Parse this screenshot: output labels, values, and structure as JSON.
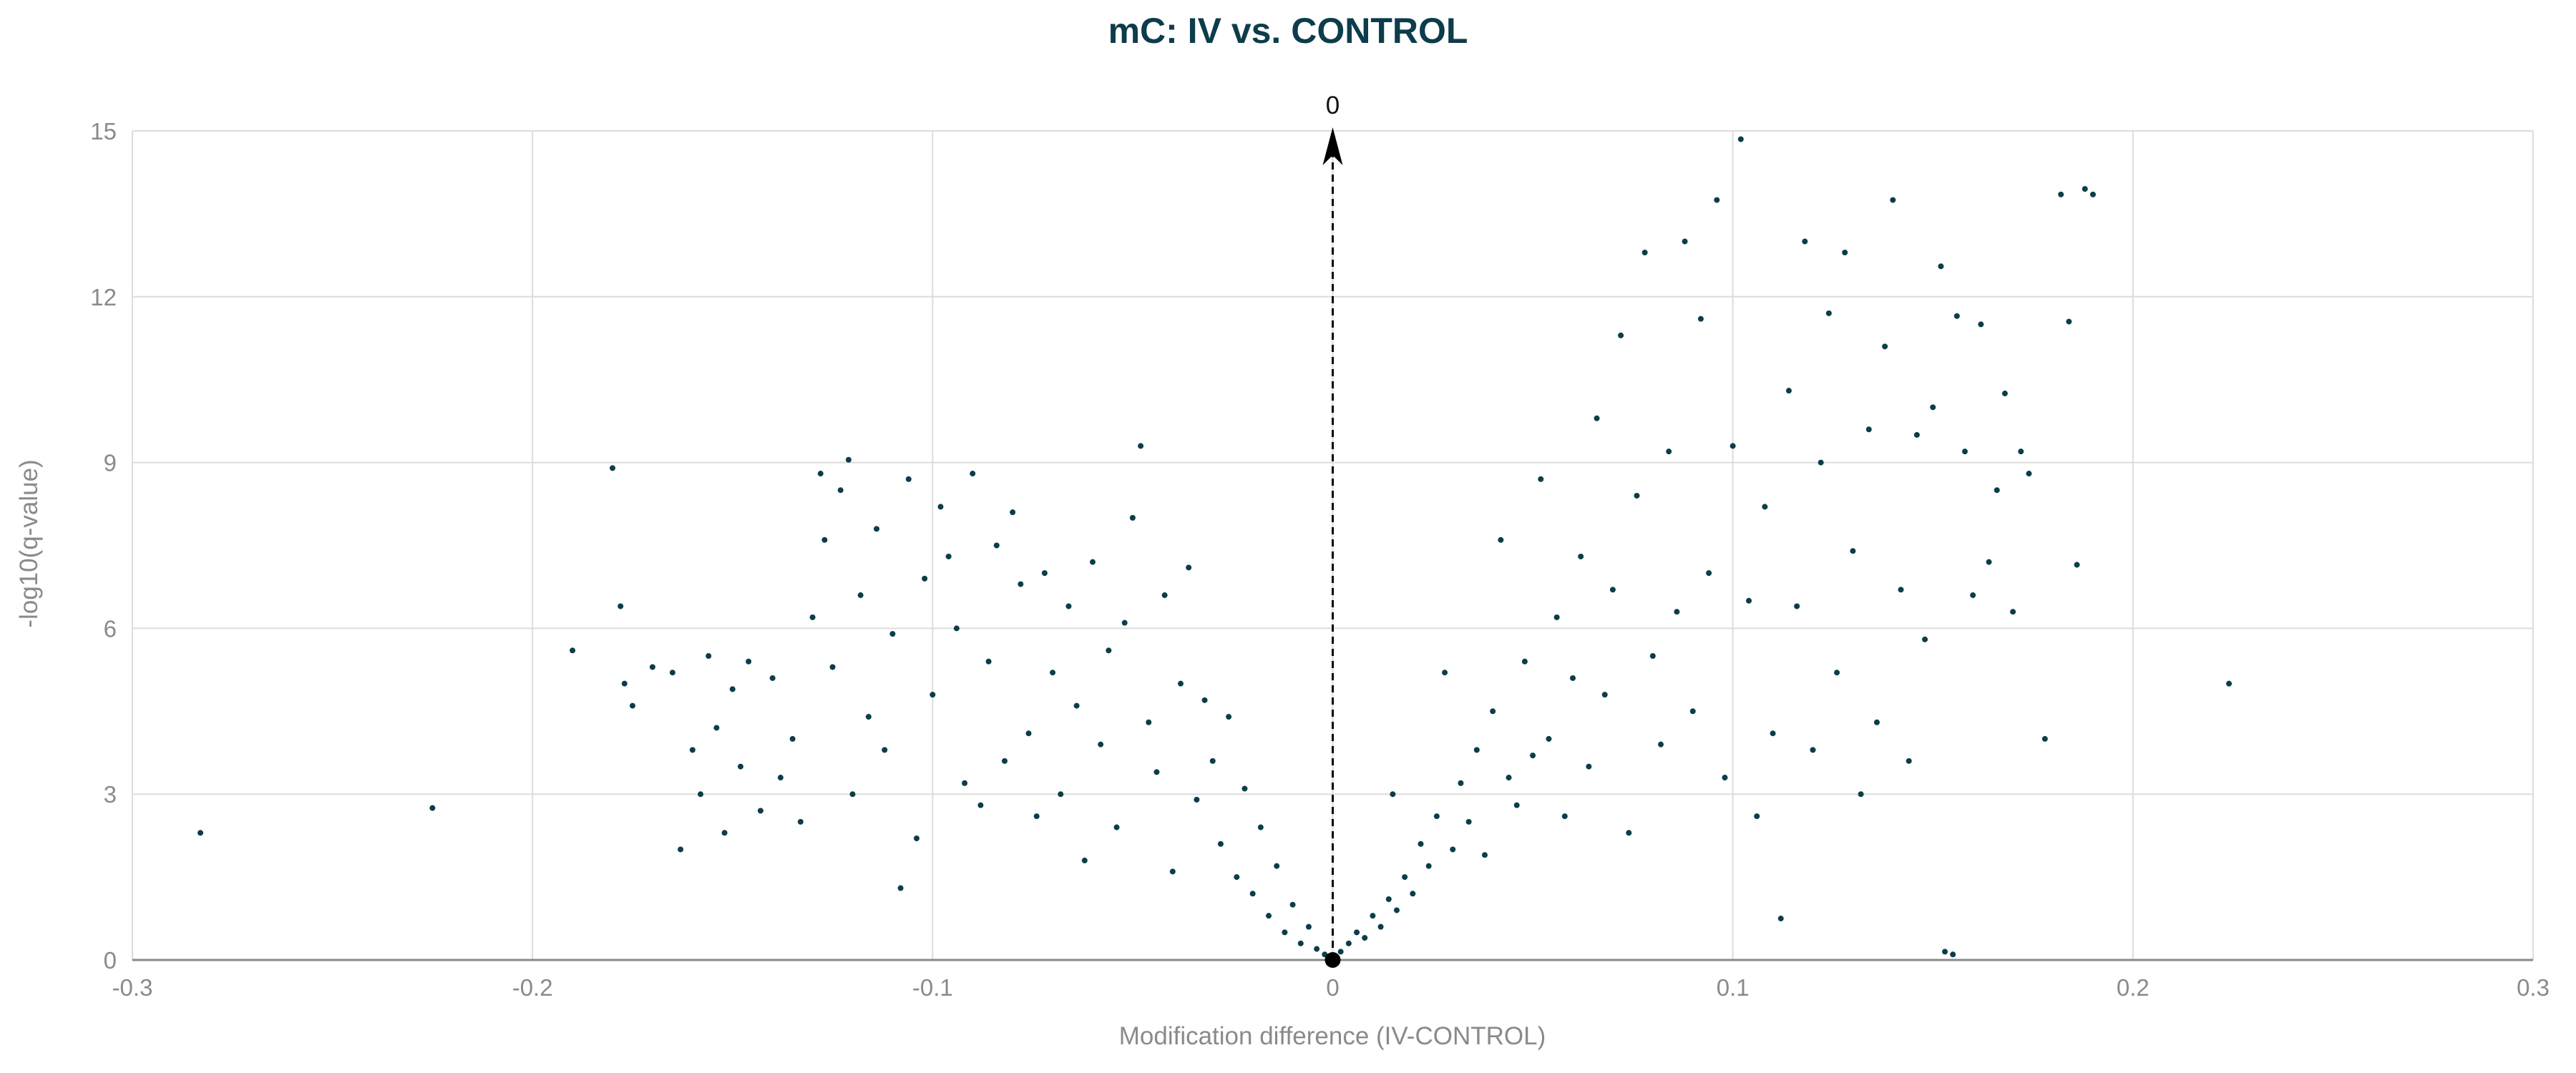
{
  "chart_data": {
    "type": "scatter",
    "title": "mC: IV vs. CONTROL",
    "xlabel": "Modification difference (IV-CONTROL)",
    "ylabel": "-log10(q-value)",
    "xlim": [
      -0.3,
      0.3
    ],
    "ylim": [
      0,
      15
    ],
    "xticks": [
      -0.3,
      -0.2,
      -0.1,
      0,
      0.1,
      0.2,
      0.3
    ],
    "xtick_labels": [
      "-0.3",
      "-0.2",
      "-0.1",
      "0",
      "0.1",
      "0.2",
      "0.3"
    ],
    "yticks": [
      0,
      3,
      6,
      9,
      12,
      15
    ],
    "ytick_labels": [
      "0",
      "3",
      "6",
      "9",
      "12",
      "15"
    ],
    "grid": true,
    "point_color": "#0d3c4a",
    "reference_line": {
      "x": 0,
      "label": "0"
    },
    "series": [
      {
        "points": [
          [
            -0.283,
            2.3
          ],
          [
            -0.225,
            2.75
          ],
          [
            -0.19,
            5.6
          ],
          [
            -0.18,
            8.9
          ],
          [
            -0.178,
            6.4
          ],
          [
            -0.177,
            5.0
          ],
          [
            -0.175,
            4.6
          ],
          [
            -0.17,
            5.3
          ],
          [
            -0.165,
            5.2
          ],
          [
            -0.163,
            2.0
          ],
          [
            -0.16,
            3.8
          ],
          [
            -0.158,
            3.0
          ],
          [
            -0.156,
            5.5
          ],
          [
            -0.154,
            4.2
          ],
          [
            -0.152,
            2.3
          ],
          [
            -0.15,
            4.9
          ],
          [
            -0.148,
            3.5
          ],
          [
            -0.146,
            5.4
          ],
          [
            -0.143,
            2.7
          ],
          [
            -0.14,
            5.1
          ],
          [
            -0.138,
            3.3
          ],
          [
            -0.135,
            4.0
          ],
          [
            -0.133,
            2.5
          ],
          [
            -0.13,
            6.2
          ],
          [
            -0.128,
            8.8
          ],
          [
            -0.127,
            7.6
          ],
          [
            -0.125,
            5.3
          ],
          [
            -0.123,
            8.5
          ],
          [
            -0.121,
            9.05
          ],
          [
            -0.12,
            3.0
          ],
          [
            -0.118,
            6.6
          ],
          [
            -0.116,
            4.4
          ],
          [
            -0.114,
            7.8
          ],
          [
            -0.112,
            3.8
          ],
          [
            -0.11,
            5.9
          ],
          [
            -0.108,
            1.3
          ],
          [
            -0.106,
            8.7
          ],
          [
            -0.104,
            2.2
          ],
          [
            -0.102,
            6.9
          ],
          [
            -0.1,
            4.8
          ],
          [
            -0.098,
            8.2
          ],
          [
            -0.096,
            7.3
          ],
          [
            -0.094,
            6.0
          ],
          [
            -0.092,
            3.2
          ],
          [
            -0.09,
            8.8
          ],
          [
            -0.088,
            2.8
          ],
          [
            -0.086,
            5.4
          ],
          [
            -0.084,
            7.5
          ],
          [
            -0.082,
            3.6
          ],
          [
            -0.08,
            8.1
          ],
          [
            -0.078,
            6.8
          ],
          [
            -0.076,
            4.1
          ],
          [
            -0.074,
            2.6
          ],
          [
            -0.072,
            7.0
          ],
          [
            -0.07,
            5.2
          ],
          [
            -0.068,
            3.0
          ],
          [
            -0.066,
            6.4
          ],
          [
            -0.064,
            4.6
          ],
          [
            -0.062,
            1.8
          ],
          [
            -0.06,
            7.2
          ],
          [
            -0.058,
            3.9
          ],
          [
            -0.056,
            5.6
          ],
          [
            -0.054,
            2.4
          ],
          [
            -0.052,
            6.1
          ],
          [
            -0.05,
            8.0
          ],
          [
            -0.048,
            9.3
          ],
          [
            -0.046,
            4.3
          ],
          [
            -0.044,
            3.4
          ],
          [
            -0.042,
            6.6
          ],
          [
            -0.04,
            1.6
          ],
          [
            -0.038,
            5.0
          ],
          [
            -0.036,
            7.1
          ],
          [
            -0.034,
            2.9
          ],
          [
            -0.032,
            4.7
          ],
          [
            -0.03,
            3.6
          ],
          [
            -0.028,
            2.1
          ],
          [
            -0.026,
            4.4
          ],
          [
            -0.024,
            1.5
          ],
          [
            -0.022,
            3.1
          ],
          [
            -0.02,
            1.2
          ],
          [
            -0.018,
            2.4
          ],
          [
            -0.016,
            0.8
          ],
          [
            -0.014,
            1.7
          ],
          [
            -0.012,
            0.5
          ],
          [
            -0.01,
            1.0
          ],
          [
            -0.008,
            0.3
          ],
          [
            -0.006,
            0.6
          ],
          [
            -0.004,
            0.2
          ],
          [
            -0.002,
            0.1
          ],
          [
            0,
            0.0
          ],
          [
            0.002,
            0.15
          ],
          [
            0.004,
            0.3
          ],
          [
            0.006,
            0.5
          ],
          [
            0.008,
            0.4
          ],
          [
            0.01,
            0.8
          ],
          [
            0.012,
            0.6
          ],
          [
            0.014,
            1.1
          ],
          [
            0.015,
            3.0
          ],
          [
            0.016,
            0.9
          ],
          [
            0.018,
            1.5
          ],
          [
            0.02,
            1.2
          ],
          [
            0.022,
            2.1
          ],
          [
            0.024,
            1.7
          ],
          [
            0.026,
            2.6
          ],
          [
            0.028,
            5.2
          ],
          [
            0.03,
            2.0
          ],
          [
            0.032,
            3.2
          ],
          [
            0.034,
            2.5
          ],
          [
            0.036,
            3.8
          ],
          [
            0.038,
            1.9
          ],
          [
            0.04,
            4.5
          ],
          [
            0.042,
            7.6
          ],
          [
            0.044,
            3.3
          ],
          [
            0.046,
            2.8
          ],
          [
            0.048,
            5.4
          ],
          [
            0.05,
            3.7
          ],
          [
            0.052,
            8.7
          ],
          [
            0.054,
            4.0
          ],
          [
            0.056,
            6.2
          ],
          [
            0.058,
            2.6
          ],
          [
            0.06,
            5.1
          ],
          [
            0.062,
            7.3
          ],
          [
            0.064,
            3.5
          ],
          [
            0.066,
            9.8
          ],
          [
            0.068,
            4.8
          ],
          [
            0.07,
            6.7
          ],
          [
            0.072,
            11.3
          ],
          [
            0.074,
            2.3
          ],
          [
            0.076,
            8.4
          ],
          [
            0.078,
            12.8
          ],
          [
            0.08,
            5.5
          ],
          [
            0.082,
            3.9
          ],
          [
            0.084,
            9.2
          ],
          [
            0.086,
            6.3
          ],
          [
            0.088,
            13.0
          ],
          [
            0.09,
            4.5
          ],
          [
            0.092,
            11.6
          ],
          [
            0.094,
            7.0
          ],
          [
            0.096,
            13.75
          ],
          [
            0.098,
            3.3
          ],
          [
            0.1,
            9.3
          ],
          [
            0.102,
            14.85
          ],
          [
            0.104,
            6.5
          ],
          [
            0.106,
            2.6
          ],
          [
            0.108,
            8.2
          ],
          [
            0.11,
            4.1
          ],
          [
            0.112,
            0.75
          ],
          [
            0.114,
            10.3
          ],
          [
            0.116,
            6.4
          ],
          [
            0.118,
            13.0
          ],
          [
            0.12,
            3.8
          ],
          [
            0.122,
            9.0
          ],
          [
            0.124,
            11.7
          ],
          [
            0.126,
            5.2
          ],
          [
            0.128,
            12.8
          ],
          [
            0.13,
            7.4
          ],
          [
            0.132,
            3.0
          ],
          [
            0.134,
            9.6
          ],
          [
            0.136,
            4.3
          ],
          [
            0.138,
            11.1
          ],
          [
            0.14,
            13.75
          ],
          [
            0.142,
            6.7
          ],
          [
            0.144,
            3.6
          ],
          [
            0.146,
            9.5
          ],
          [
            0.148,
            5.8
          ],
          [
            0.15,
            10.0
          ],
          [
            0.152,
            12.55
          ],
          [
            0.153,
            0.15
          ],
          [
            0.155,
            0.1
          ],
          [
            0.156,
            11.65
          ],
          [
            0.158,
            9.2
          ],
          [
            0.16,
            6.6
          ],
          [
            0.162,
            11.5
          ],
          [
            0.164,
            7.2
          ],
          [
            0.166,
            8.5
          ],
          [
            0.168,
            10.25
          ],
          [
            0.17,
            6.3
          ],
          [
            0.172,
            9.2
          ],
          [
            0.174,
            8.8
          ],
          [
            0.178,
            4.0
          ],
          [
            0.182,
            13.85
          ],
          [
            0.184,
            11.55
          ],
          [
            0.186,
            7.15
          ],
          [
            0.188,
            13.95
          ],
          [
            0.19,
            13.85
          ],
          [
            0.224,
            5.0
          ]
        ]
      }
    ]
  }
}
